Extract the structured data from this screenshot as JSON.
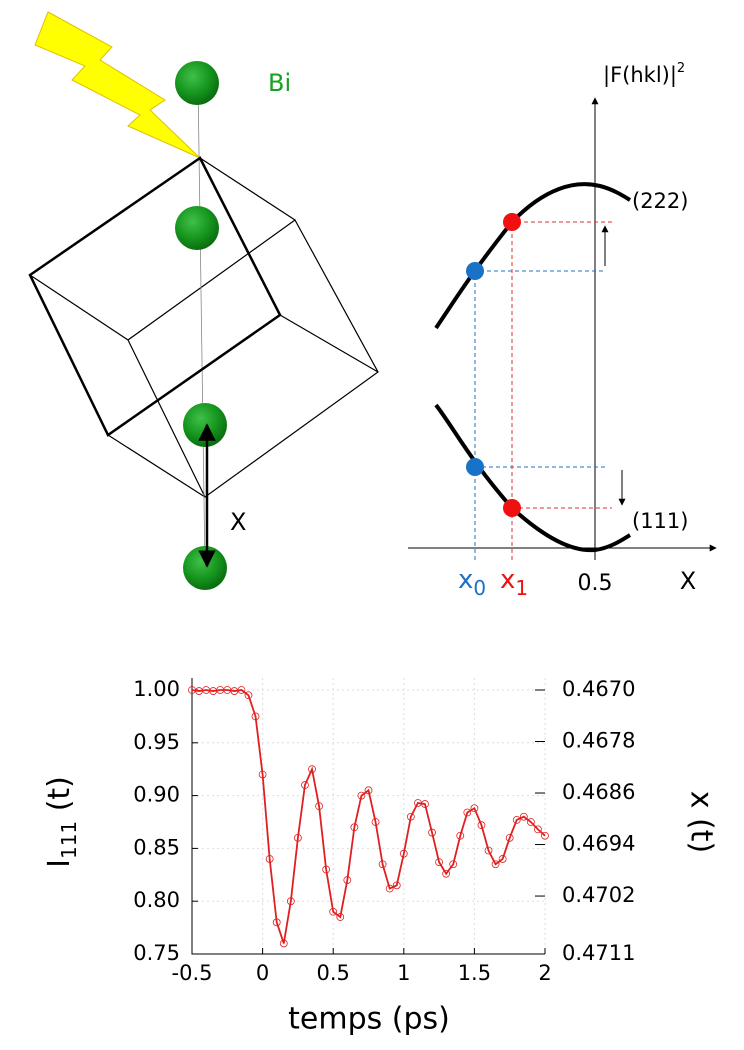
{
  "diagram": {
    "atom_label": "Bi",
    "displacement_label": "X",
    "axis_y_label": "|F(hkl)|",
    "axis_y_label_sup": "2",
    "curve_upper_label": "(222)",
    "curve_lower_label": "(111)",
    "x0_label": "x",
    "x0_sub": "0",
    "x1_label": "x",
    "x1_sub": "1",
    "half_label": "0.5",
    "axis_x_label": "X"
  },
  "chart_data": {
    "type": "line",
    "xlabel": "temps (ps)",
    "ylabel": "I",
    "ylabel_sub": "111",
    "ylabel_suffix": " (t)",
    "y2label": "x (t)",
    "x": [
      -0.5,
      -0.45,
      -0.4,
      -0.35,
      -0.3,
      -0.25,
      -0.2,
      -0.15,
      -0.1,
      -0.05,
      0,
      0.05,
      0.1,
      0.15,
      0.2,
      0.25,
      0.3,
      0.35,
      0.4,
      0.45,
      0.5,
      0.55,
      0.6,
      0.65,
      0.7,
      0.75,
      0.8,
      0.85,
      0.9,
      0.95,
      1.0,
      1.05,
      1.1,
      1.15,
      1.2,
      1.25,
      1.3,
      1.35,
      1.4,
      1.45,
      1.5,
      1.55,
      1.6,
      1.65,
      1.7,
      1.75,
      1.8,
      1.85,
      1.9,
      1.95,
      2.0
    ],
    "series": [
      {
        "color": "#e02020",
        "values": [
          1.0,
          0.999,
          1.0,
          0.999,
          1.0,
          1.0,
          0.999,
          1.0,
          0.995,
          0.975,
          0.92,
          0.84,
          0.78,
          0.76,
          0.8,
          0.86,
          0.91,
          0.925,
          0.89,
          0.83,
          0.79,
          0.785,
          0.82,
          0.87,
          0.9,
          0.905,
          0.875,
          0.835,
          0.812,
          0.815,
          0.845,
          0.88,
          0.893,
          0.892,
          0.865,
          0.837,
          0.826,
          0.835,
          0.862,
          0.884,
          0.888,
          0.872,
          0.848,
          0.835,
          0.84,
          0.86,
          0.877,
          0.88,
          0.875,
          0.868,
          0.862
        ]
      }
    ],
    "xlim": [
      -0.5,
      2
    ],
    "xticks": [
      -0.5,
      0,
      0.5,
      1,
      1.5,
      2
    ],
    "ylim": [
      0.75,
      1.0
    ],
    "yticks": [
      {
        "value": 0.75,
        "label": "0.75"
      },
      {
        "value": 0.8,
        "label": "0.80"
      },
      {
        "value": 0.85,
        "label": "0.85"
      },
      {
        "value": 0.9,
        "label": "0.90"
      },
      {
        "value": 0.95,
        "label": "0.95"
      },
      {
        "value": 1.0,
        "label": "1.00"
      }
    ],
    "y2lim": [
      0.4711,
      0.467
    ],
    "y2ticks": [
      {
        "value": 0.467,
        "label": "0.4670"
      },
      0.4678,
      0.4686,
      0.4694,
      0.4702,
      0.4711
    ],
    "grid": true
  }
}
